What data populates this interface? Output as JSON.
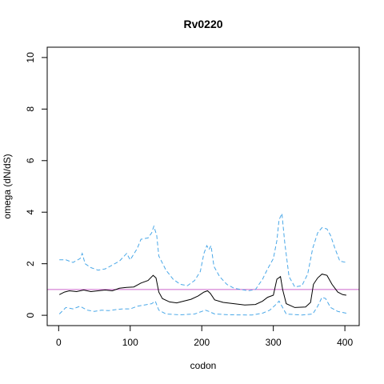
{
  "chart_data": {
    "type": "line",
    "title": "Rv0220",
    "xlabel": "codon",
    "ylabel": "omega (dN/dS)",
    "xlim": [
      -16,
      420
    ],
    "ylim": [
      -0.4,
      10.4
    ],
    "x_ticks": [
      0,
      100,
      200,
      300,
      400
    ],
    "y_ticks": [
      0,
      2,
      4,
      6,
      8,
      10
    ],
    "grid": false,
    "colors": {
      "mean": "#000000",
      "ci": "#4aa8e8",
      "reference": "#cc66cc"
    },
    "reference_line": {
      "y": 1
    },
    "series": [
      {
        "style": "solid",
        "points": [
          [
            1,
            0.8
          ],
          [
            8,
            0.9
          ],
          [
            15,
            0.95
          ],
          [
            25,
            0.92
          ],
          [
            35,
            0.98
          ],
          [
            45,
            0.92
          ],
          [
            55,
            0.95
          ],
          [
            65,
            0.98
          ],
          [
            75,
            0.95
          ],
          [
            85,
            1.05
          ],
          [
            95,
            1.08
          ],
          [
            105,
            1.1
          ],
          [
            115,
            1.25
          ],
          [
            125,
            1.35
          ],
          [
            132,
            1.55
          ],
          [
            136,
            1.45
          ],
          [
            140,
            0.9
          ],
          [
            145,
            0.65
          ],
          [
            155,
            0.52
          ],
          [
            165,
            0.48
          ],
          [
            175,
            0.55
          ],
          [
            185,
            0.62
          ],
          [
            195,
            0.75
          ],
          [
            203,
            0.9
          ],
          [
            208,
            0.95
          ],
          [
            212,
            0.85
          ],
          [
            218,
            0.6
          ],
          [
            230,
            0.5
          ],
          [
            245,
            0.45
          ],
          [
            260,
            0.4
          ],
          [
            275,
            0.42
          ],
          [
            285,
            0.55
          ],
          [
            292,
            0.7
          ],
          [
            300,
            0.78
          ],
          [
            305,
            1.4
          ],
          [
            310,
            1.5
          ],
          [
            313,
            1.0
          ],
          [
            318,
            0.45
          ],
          [
            330,
            0.3
          ],
          [
            345,
            0.32
          ],
          [
            352,
            0.5
          ],
          [
            356,
            1.2
          ],
          [
            362,
            1.45
          ],
          [
            368,
            1.6
          ],
          [
            375,
            1.55
          ],
          [
            382,
            1.2
          ],
          [
            390,
            0.9
          ],
          [
            397,
            0.8
          ],
          [
            402,
            0.78
          ]
        ]
      },
      {
        "style": "dashed",
        "points": [
          [
            1,
            2.15
          ],
          [
            10,
            2.15
          ],
          [
            20,
            2.05
          ],
          [
            30,
            2.2
          ],
          [
            33,
            2.4
          ],
          [
            37,
            2.0
          ],
          [
            45,
            1.85
          ],
          [
            55,
            1.75
          ],
          [
            65,
            1.8
          ],
          [
            75,
            1.95
          ],
          [
            85,
            2.1
          ],
          [
            95,
            2.4
          ],
          [
            100,
            2.15
          ],
          [
            110,
            2.6
          ],
          [
            115,
            2.95
          ],
          [
            125,
            3.0
          ],
          [
            130,
            3.2
          ],
          [
            133,
            3.45
          ],
          [
            137,
            3.1
          ],
          [
            140,
            2.3
          ],
          [
            150,
            1.75
          ],
          [
            160,
            1.4
          ],
          [
            170,
            1.2
          ],
          [
            180,
            1.15
          ],
          [
            190,
            1.35
          ],
          [
            198,
            1.7
          ],
          [
            203,
            2.4
          ],
          [
            207,
            2.7
          ],
          [
            210,
            2.55
          ],
          [
            213,
            2.7
          ],
          [
            217,
            1.9
          ],
          [
            225,
            1.5
          ],
          [
            235,
            1.2
          ],
          [
            245,
            1.05
          ],
          [
            255,
            1.0
          ],
          [
            265,
            0.95
          ],
          [
            275,
            1.0
          ],
          [
            285,
            1.4
          ],
          [
            292,
            1.8
          ],
          [
            300,
            2.2
          ],
          [
            305,
            2.9
          ],
          [
            308,
            3.7
          ],
          [
            312,
            3.95
          ],
          [
            316,
            2.8
          ],
          [
            322,
            1.5
          ],
          [
            330,
            1.1
          ],
          [
            340,
            1.15
          ],
          [
            348,
            1.6
          ],
          [
            355,
            2.6
          ],
          [
            362,
            3.2
          ],
          [
            368,
            3.4
          ],
          [
            375,
            3.35
          ],
          [
            380,
            3.1
          ],
          [
            386,
            2.6
          ],
          [
            393,
            2.1
          ],
          [
            402,
            2.05
          ]
        ]
      },
      {
        "style": "dashed",
        "points": [
          [
            1,
            0.05
          ],
          [
            10,
            0.3
          ],
          [
            20,
            0.25
          ],
          [
            30,
            0.35
          ],
          [
            40,
            0.2
          ],
          [
            50,
            0.15
          ],
          [
            60,
            0.2
          ],
          [
            70,
            0.18
          ],
          [
            80,
            0.22
          ],
          [
            90,
            0.25
          ],
          [
            100,
            0.25
          ],
          [
            110,
            0.35
          ],
          [
            120,
            0.4
          ],
          [
            130,
            0.45
          ],
          [
            135,
            0.55
          ],
          [
            140,
            0.2
          ],
          [
            150,
            0.05
          ],
          [
            170,
            0.02
          ],
          [
            190,
            0.05
          ],
          [
            200,
            0.15
          ],
          [
            205,
            0.2
          ],
          [
            210,
            0.15
          ],
          [
            218,
            0.05
          ],
          [
            240,
            0.02
          ],
          [
            270,
            0.01
          ],
          [
            285,
            0.08
          ],
          [
            295,
            0.2
          ],
          [
            303,
            0.4
          ],
          [
            308,
            0.55
          ],
          [
            312,
            0.35
          ],
          [
            318,
            0.05
          ],
          [
            340,
            0.01
          ],
          [
            355,
            0.05
          ],
          [
            362,
            0.35
          ],
          [
            368,
            0.7
          ],
          [
            373,
            0.65
          ],
          [
            380,
            0.3
          ],
          [
            390,
            0.15
          ],
          [
            402,
            0.08
          ]
        ]
      }
    ]
  }
}
